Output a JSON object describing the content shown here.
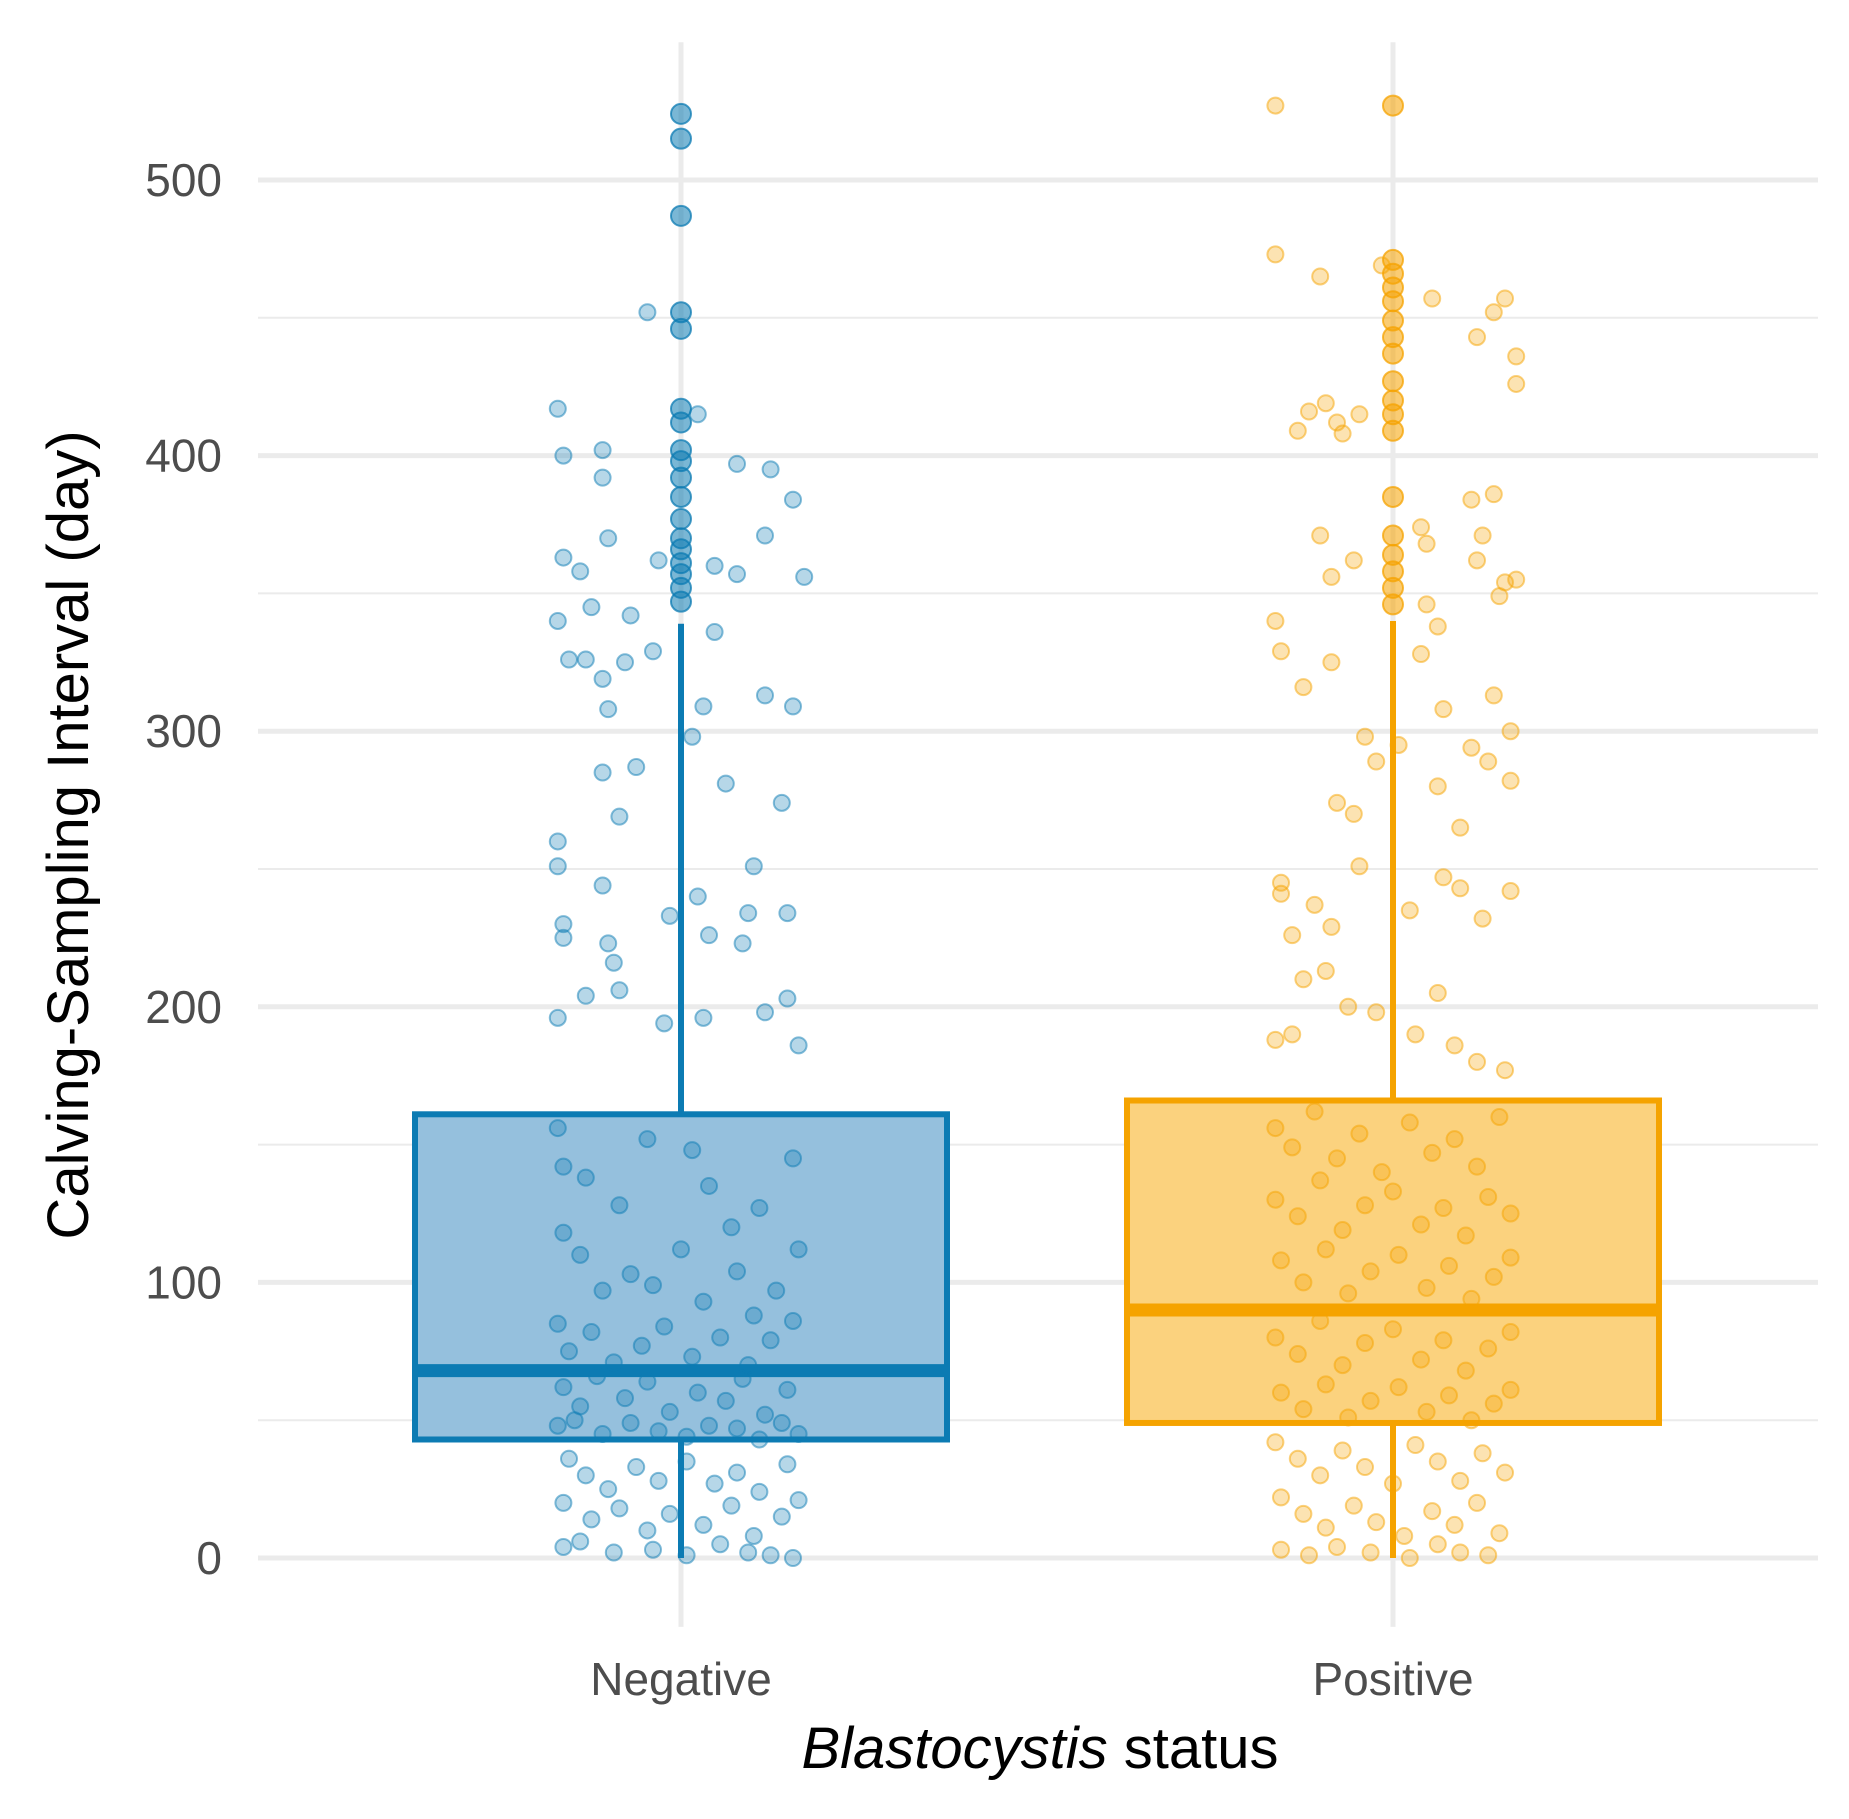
{
  "chart_data": {
    "type": "boxplot",
    "title": "",
    "xlabel": {
      "italic_part": "Blastocystis",
      "plain_part": " status"
    },
    "ylabel": "Calving-Sampling Interval (day)",
    "ylim": [
      -25,
      550
    ],
    "y_ticks": [
      0,
      100,
      200,
      300,
      400,
      500
    ],
    "y_minor_ticks": [
      50,
      150,
      250,
      350,
      450
    ],
    "categories": [
      "Negative",
      "Positive"
    ],
    "series": [
      {
        "name": "Negative",
        "color": "#0C7BB3",
        "fill": "#95C0DD",
        "box": {
          "whisker_low": 0,
          "q1": 43,
          "median": 68,
          "q3": 161,
          "whisker_high": 339
        },
        "outliers": [
          347,
          352,
          357,
          361,
          366,
          370,
          377,
          385,
          392,
          398,
          402,
          412,
          417,
          446,
          452,
          487,
          515,
          524
        ],
        "jitter_points": [
          [
            -0.22,
            417
          ],
          [
            -0.21,
            400
          ],
          [
            -0.14,
            402
          ],
          [
            -0.14,
            392
          ],
          [
            -0.06,
            452
          ],
          [
            0.03,
            415
          ],
          [
            0.1,
            397
          ],
          [
            0.16,
            395
          ],
          [
            0.2,
            384
          ],
          [
            -0.21,
            363
          ],
          [
            -0.18,
            358
          ],
          [
            -0.16,
            345
          ],
          [
            -0.13,
            370
          ],
          [
            -0.09,
            342
          ],
          [
            -0.04,
            362
          ],
          [
            0.06,
            360
          ],
          [
            0.1,
            357
          ],
          [
            0.15,
            371
          ],
          [
            0.22,
            356
          ],
          [
            -0.22,
            340
          ],
          [
            -0.2,
            326
          ],
          [
            -0.17,
            326
          ],
          [
            -0.14,
            319
          ],
          [
            -0.13,
            308
          ],
          [
            -0.1,
            325
          ],
          [
            -0.05,
            329
          ],
          [
            0.04,
            309
          ],
          [
            0.06,
            336
          ],
          [
            0.15,
            313
          ],
          [
            0.2,
            309
          ],
          [
            -0.22,
            260
          ],
          [
            -0.22,
            251
          ],
          [
            -0.14,
            285
          ],
          [
            -0.11,
            269
          ],
          [
            -0.08,
            287
          ],
          [
            0.02,
            298
          ],
          [
            0.08,
            281
          ],
          [
            0.13,
            251
          ],
          [
            0.18,
            274
          ],
          [
            -0.21,
            230
          ],
          [
            -0.21,
            225
          ],
          [
            -0.14,
            244
          ],
          [
            -0.13,
            223
          ],
          [
            -0.12,
            216
          ],
          [
            -0.02,
            233
          ],
          [
            0.03,
            240
          ],
          [
            0.05,
            226
          ],
          [
            0.12,
            234
          ],
          [
            0.19,
            234
          ],
          [
            -0.22,
            196
          ],
          [
            -0.17,
            204
          ],
          [
            -0.11,
            206
          ],
          [
            -0.03,
            194
          ],
          [
            0.04,
            196
          ],
          [
            0.11,
            223
          ],
          [
            0.15,
            198
          ],
          [
            0.19,
            203
          ],
          [
            0.21,
            186
          ],
          [
            -0.22,
            156
          ],
          [
            -0.21,
            142
          ],
          [
            -0.17,
            138
          ],
          [
            -0.11,
            128
          ],
          [
            -0.06,
            152
          ],
          [
            0.02,
            148
          ],
          [
            0.05,
            135
          ],
          [
            0.09,
            120
          ],
          [
            0.14,
            127
          ],
          [
            0.2,
            145
          ],
          [
            -0.21,
            118
          ],
          [
            -0.18,
            110
          ],
          [
            -0.14,
            97
          ],
          [
            -0.09,
            103
          ],
          [
            -0.05,
            99
          ],
          [
            0.0,
            112
          ],
          [
            0.04,
            93
          ],
          [
            0.1,
            104
          ],
          [
            0.13,
            88
          ],
          [
            0.17,
            97
          ],
          [
            0.21,
            112
          ],
          [
            -0.22,
            85
          ],
          [
            -0.2,
            75
          ],
          [
            -0.16,
            82
          ],
          [
            -0.12,
            71
          ],
          [
            -0.07,
            77
          ],
          [
            -0.03,
            84
          ],
          [
            0.02,
            73
          ],
          [
            0.07,
            80
          ],
          [
            0.12,
            70
          ],
          [
            0.16,
            79
          ],
          [
            0.2,
            86
          ],
          [
            -0.21,
            62
          ],
          [
            -0.18,
            55
          ],
          [
            -0.15,
            66
          ],
          [
            -0.1,
            58
          ],
          [
            -0.06,
            64
          ],
          [
            -0.02,
            53
          ],
          [
            0.03,
            60
          ],
          [
            0.08,
            57
          ],
          [
            0.11,
            65
          ],
          [
            0.15,
            52
          ],
          [
            0.19,
            61
          ],
          [
            -0.22,
            48
          ],
          [
            -0.19,
            50
          ],
          [
            -0.14,
            45
          ],
          [
            -0.09,
            49
          ],
          [
            -0.04,
            46
          ],
          [
            0.01,
            44
          ],
          [
            0.05,
            48
          ],
          [
            0.1,
            47
          ],
          [
            0.14,
            43
          ],
          [
            0.18,
            49
          ],
          [
            0.21,
            45
          ],
          [
            -0.2,
            36
          ],
          [
            -0.17,
            30
          ],
          [
            -0.13,
            25
          ],
          [
            -0.08,
            33
          ],
          [
            -0.04,
            28
          ],
          [
            0.01,
            35
          ],
          [
            0.06,
            27
          ],
          [
            0.1,
            31
          ],
          [
            0.14,
            24
          ],
          [
            0.19,
            34
          ],
          [
            -0.21,
            20
          ],
          [
            -0.16,
            14
          ],
          [
            -0.11,
            18
          ],
          [
            -0.06,
            10
          ],
          [
            -0.02,
            16
          ],
          [
            0.04,
            12
          ],
          [
            0.09,
            19
          ],
          [
            0.13,
            8
          ],
          [
            0.18,
            15
          ],
          [
            0.21,
            21
          ],
          [
            -0.21,
            4
          ],
          [
            -0.18,
            6
          ],
          [
            -0.12,
            2
          ],
          [
            -0.05,
            3
          ],
          [
            0.01,
            1
          ],
          [
            0.07,
            5
          ],
          [
            0.12,
            2
          ],
          [
            0.16,
            1
          ],
          [
            0.2,
            0
          ]
        ]
      },
      {
        "name": "Positive",
        "color": "#F5A300",
        "fill": "#FBD27E",
        "box": {
          "whisker_low": 0,
          "q1": 49,
          "median": 90,
          "q3": 166,
          "whisker_high": 340
        },
        "outliers": [
          346,
          352,
          358,
          364,
          371,
          385,
          409,
          415,
          420,
          427,
          437,
          443,
          449,
          456,
          461,
          466,
          471,
          527
        ],
        "jitter_points": [
          [
            -0.21,
            527
          ],
          [
            -0.21,
            473
          ],
          [
            -0.13,
            465
          ],
          [
            -0.02,
            469
          ],
          [
            0.07,
            457
          ],
          [
            0.15,
            443
          ],
          [
            0.18,
            452
          ],
          [
            0.2,
            457
          ],
          [
            0.22,
            436
          ],
          [
            0.22,
            426
          ],
          [
            -0.17,
            409
          ],
          [
            -0.15,
            416
          ],
          [
            -0.12,
            419
          ],
          [
            -0.1,
            412
          ],
          [
            -0.09,
            408
          ],
          [
            -0.06,
            415
          ],
          [
            0.14,
            384
          ],
          [
            0.18,
            386
          ],
          [
            -0.13,
            371
          ],
          [
            -0.11,
            356
          ],
          [
            -0.07,
            362
          ],
          [
            0.05,
            374
          ],
          [
            0.06,
            368
          ],
          [
            0.15,
            362
          ],
          [
            0.16,
            371
          ],
          [
            0.19,
            349
          ],
          [
            0.2,
            354
          ],
          [
            0.22,
            355
          ],
          [
            -0.21,
            340
          ],
          [
            -0.2,
            329
          ],
          [
            -0.16,
            316
          ],
          [
            -0.11,
            325
          ],
          [
            0.05,
            328
          ],
          [
            0.06,
            346
          ],
          [
            0.08,
            338
          ],
          [
            0.09,
            308
          ],
          [
            0.18,
            313
          ],
          [
            0.21,
            300
          ],
          [
            -0.05,
            298
          ],
          [
            -0.03,
            289
          ],
          [
            -0.1,
            274
          ],
          [
            -0.07,
            270
          ],
          [
            0.01,
            295
          ],
          [
            0.08,
            280
          ],
          [
            0.12,
            265
          ],
          [
            0.14,
            294
          ],
          [
            0.17,
            289
          ],
          [
            0.21,
            282
          ],
          [
            -0.2,
            245
          ],
          [
            -0.2,
            241
          ],
          [
            -0.18,
            226
          ],
          [
            -0.14,
            237
          ],
          [
            -0.11,
            229
          ],
          [
            -0.06,
            251
          ],
          [
            0.03,
            235
          ],
          [
            0.09,
            247
          ],
          [
            0.12,
            243
          ],
          [
            0.16,
            232
          ],
          [
            0.21,
            242
          ],
          [
            -0.21,
            188
          ],
          [
            -0.18,
            190
          ],
          [
            -0.16,
            210
          ],
          [
            -0.12,
            213
          ],
          [
            -0.08,
            200
          ],
          [
            -0.03,
            198
          ],
          [
            0.04,
            190
          ],
          [
            0.08,
            205
          ],
          [
            0.11,
            186
          ],
          [
            0.15,
            180
          ],
          [
            0.2,
            177
          ],
          [
            -0.21,
            156
          ],
          [
            -0.18,
            149
          ],
          [
            -0.14,
            162
          ],
          [
            -0.1,
            145
          ],
          [
            -0.06,
            154
          ],
          [
            -0.02,
            140
          ],
          [
            0.03,
            158
          ],
          [
            0.07,
            147
          ],
          [
            0.11,
            152
          ],
          [
            0.15,
            142
          ],
          [
            0.19,
            160
          ],
          [
            -0.21,
            130
          ],
          [
            -0.17,
            124
          ],
          [
            -0.13,
            137
          ],
          [
            -0.09,
            119
          ],
          [
            -0.05,
            128
          ],
          [
            0.0,
            133
          ],
          [
            0.05,
            121
          ],
          [
            0.09,
            127
          ],
          [
            0.13,
            117
          ],
          [
            0.17,
            131
          ],
          [
            0.21,
            125
          ],
          [
            -0.2,
            108
          ],
          [
            -0.16,
            100
          ],
          [
            -0.12,
            112
          ],
          [
            -0.08,
            96
          ],
          [
            -0.04,
            104
          ],
          [
            0.01,
            110
          ],
          [
            0.06,
            98
          ],
          [
            0.1,
            106
          ],
          [
            0.14,
            94
          ],
          [
            0.18,
            102
          ],
          [
            0.21,
            109
          ],
          [
            -0.21,
            80
          ],
          [
            -0.17,
            74
          ],
          [
            -0.13,
            86
          ],
          [
            -0.09,
            70
          ],
          [
            -0.05,
            78
          ],
          [
            0.0,
            83
          ],
          [
            0.05,
            72
          ],
          [
            0.09,
            79
          ],
          [
            0.13,
            68
          ],
          [
            0.17,
            76
          ],
          [
            0.21,
            82
          ],
          [
            -0.2,
            60
          ],
          [
            -0.16,
            54
          ],
          [
            -0.12,
            63
          ],
          [
            -0.08,
            51
          ],
          [
            -0.04,
            57
          ],
          [
            0.01,
            62
          ],
          [
            0.06,
            53
          ],
          [
            0.1,
            59
          ],
          [
            0.14,
            50
          ],
          [
            0.18,
            56
          ],
          [
            0.21,
            61
          ],
          [
            -0.21,
            42
          ],
          [
            -0.17,
            36
          ],
          [
            -0.13,
            30
          ],
          [
            -0.09,
            39
          ],
          [
            -0.05,
            33
          ],
          [
            0.0,
            27
          ],
          [
            0.04,
            41
          ],
          [
            0.08,
            35
          ],
          [
            0.12,
            28
          ],
          [
            0.16,
            38
          ],
          [
            0.2,
            31
          ],
          [
            -0.2,
            22
          ],
          [
            -0.16,
            16
          ],
          [
            -0.12,
            11
          ],
          [
            -0.07,
            19
          ],
          [
            -0.03,
            13
          ],
          [
            0.02,
            8
          ],
          [
            0.07,
            17
          ],
          [
            0.11,
            12
          ],
          [
            0.15,
            20
          ],
          [
            0.19,
            9
          ],
          [
            -0.2,
            3
          ],
          [
            -0.15,
            1
          ],
          [
            -0.1,
            4
          ],
          [
            -0.04,
            2
          ],
          [
            0.03,
            0
          ],
          [
            0.08,
            5
          ],
          [
            0.12,
            2
          ],
          [
            0.17,
            1
          ]
        ]
      }
    ]
  }
}
